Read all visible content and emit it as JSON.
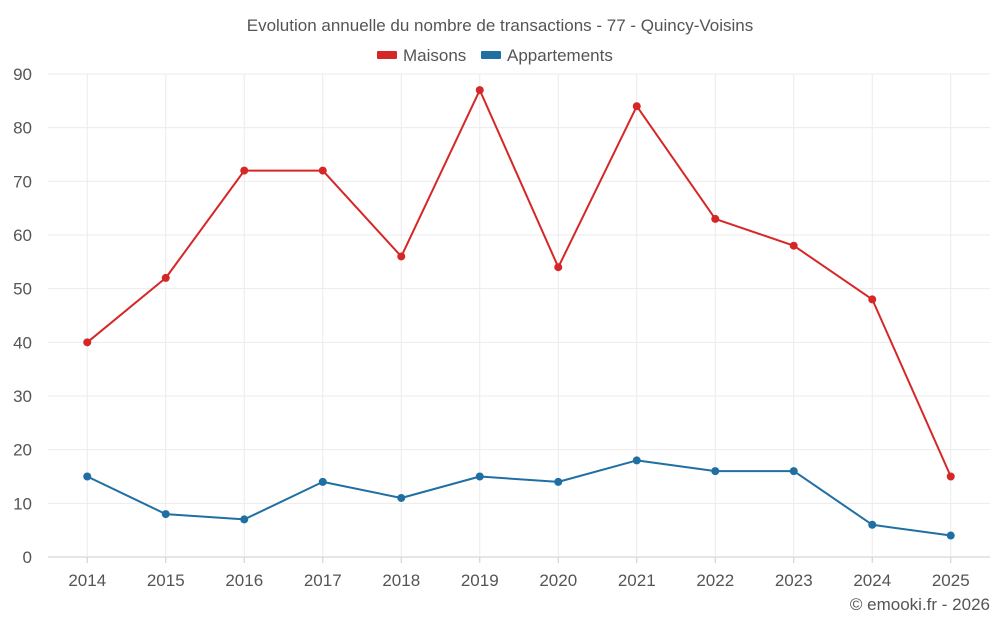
{
  "chart_data": {
    "type": "line",
    "title": "Evolution annuelle du nombre de transactions - 77 - Quincy-Voisins",
    "categories": [
      "2014",
      "2015",
      "2016",
      "2017",
      "2018",
      "2019",
      "2020",
      "2021",
      "2022",
      "2023",
      "2024",
      "2025"
    ],
    "series": [
      {
        "name": "Maisons",
        "color": "#d62728",
        "values": [
          40,
          52,
          72,
          72,
          56,
          87,
          54,
          84,
          63,
          58,
          48,
          15
        ]
      },
      {
        "name": "Appartements",
        "color": "#1f6fa3",
        "values": [
          15,
          8,
          7,
          14,
          11,
          15,
          14,
          18,
          16,
          16,
          6,
          4
        ]
      }
    ],
    "ylim": [
      0,
      90
    ],
    "yticks": [
      0,
      10,
      20,
      30,
      40,
      50,
      60,
      70,
      80,
      90
    ],
    "xlabel": "",
    "ylabel": "",
    "grid": true,
    "legend_position": "top-center"
  },
  "credit": "© emooki.fr - 2026"
}
